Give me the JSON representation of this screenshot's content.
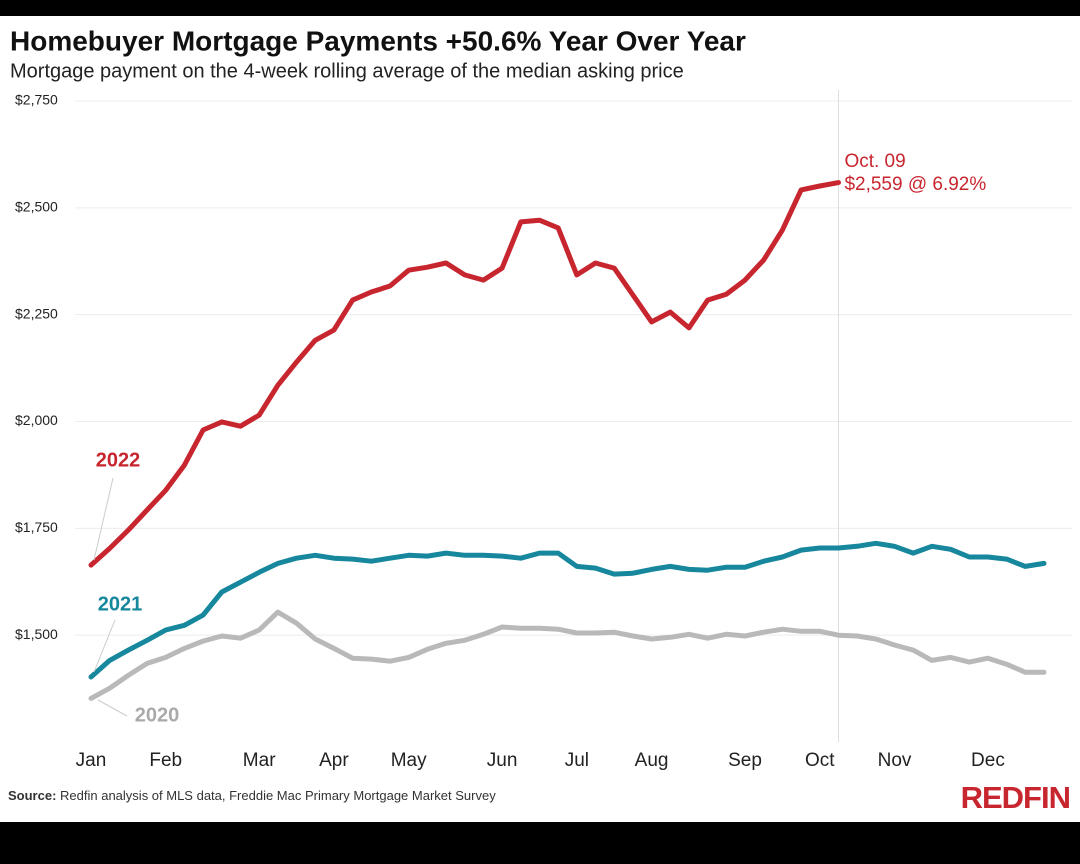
{
  "chart_data": {
    "type": "line",
    "title": "Homebuyer Mortgage Payments +50.6% Year Over Year",
    "subtitle": "Mortgage payment on the 4-week rolling average of the median asking price",
    "categories": [
      "Jan",
      null,
      null,
      null,
      "Feb",
      null,
      null,
      null,
      null,
      "Mar",
      null,
      null,
      null,
      "Apr",
      null,
      null,
      null,
      "May",
      null,
      null,
      null,
      null,
      "Jun",
      null,
      null,
      null,
      "Jul",
      null,
      null,
      null,
      "Aug",
      null,
      null,
      null,
      null,
      "Sep",
      null,
      null,
      null,
      "Oct",
      null,
      null,
      null,
      "Nov",
      null,
      null,
      null,
      null,
      "Dec",
      null,
      null,
      null
    ],
    "series": [
      {
        "name": "2022",
        "color": "#c8262f",
        "values": [
          1664,
          1703,
          1746,
          1793,
          1839,
          1898,
          1980,
          1999,
          1989,
          2015,
          2085,
          2139,
          2190,
          2214,
          2284,
          2303,
          2317,
          2354,
          2361,
          2371,
          2343,
          2331,
          2359,
          2467,
          2471,
          2453,
          2343,
          2371,
          2359,
          2296,
          2233,
          2256,
          2219,
          2284,
          2298,
          2331,
          2378,
          2448,
          2542,
          2551,
          2559,
          null,
          null,
          null,
          null,
          null,
          null,
          null,
          null,
          null,
          null,
          null
        ]
      },
      {
        "name": "2021",
        "color": "#16879c",
        "values": [
          1402,
          1441,
          1465,
          1488,
          1512,
          1523,
          1547,
          1601,
          1624,
          1647,
          1668,
          1680,
          1687,
          1680,
          1678,
          1673,
          1680,
          1687,
          1685,
          1692,
          1687,
          1687,
          1685,
          1680,
          1692,
          1692,
          1661,
          1657,
          1643,
          1645,
          1654,
          1661,
          1654,
          1652,
          1659,
          1659,
          1673,
          1683,
          1699,
          1704,
          1704,
          1708,
          1715,
          1708,
          1692,
          1708,
          1701,
          1683,
          1683,
          1678,
          1661,
          1668
        ]
      },
      {
        "name": "2020",
        "color": "#b9b9b9",
        "values": [
          1352,
          1376,
          1406,
          1434,
          1448,
          1469,
          1486,
          1498,
          1493,
          1512,
          1554,
          1528,
          1491,
          1469,
          1446,
          1444,
          1439,
          1448,
          1467,
          1481,
          1488,
          1502,
          1519,
          1516,
          1516,
          1514,
          1505,
          1505,
          1507,
          1498,
          1491,
          1495,
          1502,
          1493,
          1502,
          1498,
          1507,
          1514,
          1509,
          1509,
          1500,
          1498,
          1491,
          1477,
          1465,
          1441,
          1448,
          1437,
          1446,
          1432,
          1413,
          1413
        ]
      }
    ],
    "ylim": [
      1250,
      2750
    ],
    "yticks": [
      {
        "value": 1500,
        "label": "$1,500"
      },
      {
        "value": 1750,
        "label": "$1,750"
      },
      {
        "value": 2000,
        "label": "$2,000"
      },
      {
        "value": 2250,
        "label": "$2,250"
      },
      {
        "value": 2500,
        "label": "$2,500"
      },
      {
        "value": 2750,
        "label": "$2,750"
      }
    ],
    "grid": true,
    "annotation": {
      "date": "Oct. 09",
      "text": "$2,559 @ 6.92%"
    },
    "source_label": "Source:",
    "source": "Redfin analysis of MLS data, Freddie Mac Primary Mortgage Market Survey",
    "logo": "REDFIN"
  }
}
